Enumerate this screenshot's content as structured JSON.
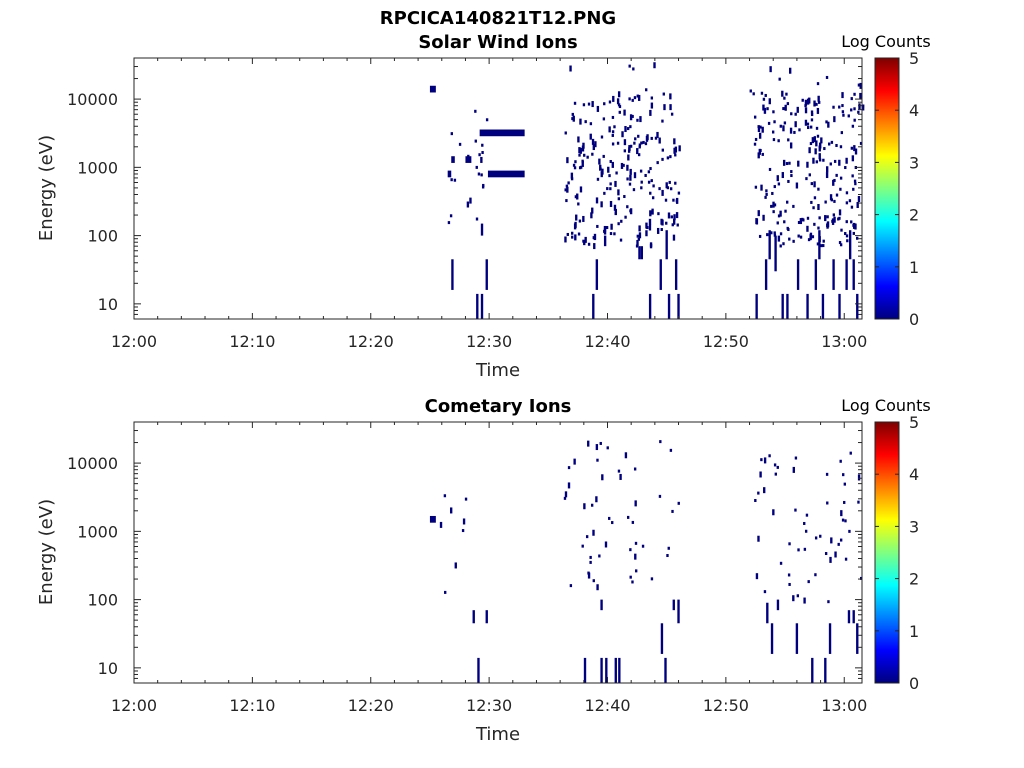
{
  "figure_title": "RPCICA140821T12.PNG",
  "colorbar_label": "Log Counts",
  "colorbar_ticks": [
    "0",
    "1",
    "2",
    "3",
    "4",
    "5"
  ],
  "colormap": [
    "#00007f",
    "#0000ff",
    "#0080ff",
    "#00ffff",
    "#80ff80",
    "#ffff00",
    "#ff8000",
    "#ff0000",
    "#7f0000"
  ],
  "chart_data": [
    {
      "type": "heatmap",
      "title": "Solar Wind Ions",
      "xlabel": "Time",
      "ylabel": "Energy (eV)",
      "x_ticks": [
        "12:00",
        "12:10",
        "12:20",
        "12:30",
        "12:40",
        "12:50",
        "13:00"
      ],
      "y_ticks": [
        "10",
        "100",
        "1000",
        "10000"
      ],
      "y_scale": "log",
      "ylim": [
        6,
        40000
      ],
      "xlim": [
        "12:00",
        "13:01.5"
      ],
      "color_scale": "log counts",
      "clim": [
        0,
        5
      ],
      "grid": false,
      "count_level": 0.3,
      "segments": [
        {
          "t": 29.2,
          "dt": 3.8,
          "e": 3200
        },
        {
          "t": 29.9,
          "dt": 3.1,
          "e": 800
        },
        {
          "t": 25.0,
          "dt": 0.5,
          "e": 14000
        },
        {
          "t": 26.8,
          "dt": 0.3,
          "e": 1300
        },
        {
          "t": 28.0,
          "dt": 0.5,
          "e": 1300
        },
        {
          "t": 26.5,
          "dt": 0.3,
          "e": 800
        }
      ],
      "columns": [
        {
          "t": 26.8,
          "e1": 16,
          "e2": 45
        },
        {
          "t": 28.9,
          "e1": 6,
          "e2": 14
        },
        {
          "t": 29.3,
          "e1": 6,
          "e2": 14
        },
        {
          "t": 29.7,
          "e1": 16,
          "e2": 45
        },
        {
          "t": 29.3,
          "e1": 100,
          "e2": 150
        },
        {
          "t": 38.7,
          "e1": 6,
          "e2": 14
        },
        {
          "t": 39.0,
          "e1": 16,
          "e2": 45
        },
        {
          "t": 43.5,
          "e1": 6,
          "e2": 14
        },
        {
          "t": 44.4,
          "e1": 16,
          "e2": 45
        },
        {
          "t": 45.1,
          "e1": 6,
          "e2": 14
        },
        {
          "t": 45.7,
          "e1": 16,
          "e2": 45
        },
        {
          "t": 45.9,
          "e1": 6,
          "e2": 14
        },
        {
          "t": 42.6,
          "e1": 45,
          "e2": 70
        },
        {
          "t": 42.8,
          "e1": 45,
          "e2": 70
        },
        {
          "t": 44.9,
          "e1": 45,
          "e2": 120
        },
        {
          "t": 39.7,
          "e1": 70,
          "e2": 100
        },
        {
          "t": 52.5,
          "e1": 6,
          "e2": 14
        },
        {
          "t": 53.3,
          "e1": 16,
          "e2": 45
        },
        {
          "t": 53.6,
          "e1": 45,
          "e2": 120
        },
        {
          "t": 54.1,
          "e1": 30,
          "e2": 100
        },
        {
          "t": 54.7,
          "e1": 6,
          "e2": 14
        },
        {
          "t": 55.1,
          "e1": 6,
          "e2": 14
        },
        {
          "t": 56.0,
          "e1": 16,
          "e2": 45
        },
        {
          "t": 56.8,
          "e1": 6,
          "e2": 14
        },
        {
          "t": 57.5,
          "e1": 16,
          "e2": 45
        },
        {
          "t": 58.1,
          "e1": 6,
          "e2": 14
        },
        {
          "t": 59.0,
          "e1": 16,
          "e2": 45
        },
        {
          "t": 59.5,
          "e1": 6,
          "e2": 14
        },
        {
          "t": 60.1,
          "e1": 16,
          "e2": 45
        },
        {
          "t": 60.7,
          "e1": 16,
          "e2": 45
        },
        {
          "t": 61.0,
          "e1": 6,
          "e2": 14
        },
        {
          "t": 57.8,
          "e1": 45,
          "e2": 120
        },
        {
          "t": 60.4,
          "e1": 45,
          "e2": 120
        }
      ],
      "clusters": [
        {
          "t0": 26.5,
          "t1": 29.8,
          "e0": 150,
          "e1": 8000,
          "n": 22,
          "seed": 3
        },
        {
          "t0": 36.3,
          "t1": 46.0,
          "e0": 70,
          "e1": 12000,
          "n": 240,
          "seed": 11
        },
        {
          "t0": 52.2,
          "t1": 61.5,
          "e0": 70,
          "e1": 12000,
          "n": 240,
          "seed": 17
        },
        {
          "t0": 36.3,
          "t1": 61.5,
          "e0": 12000,
          "e1": 35000,
          "n": 14,
          "seed": 5
        }
      ]
    },
    {
      "type": "heatmap",
      "title": "Cometary Ions",
      "xlabel": "Time",
      "ylabel": "Energy (eV)",
      "x_ticks": [
        "12:00",
        "12:10",
        "12:20",
        "12:30",
        "12:40",
        "12:50",
        "13:00"
      ],
      "y_ticks": [
        "10",
        "100",
        "1000",
        "10000"
      ],
      "y_scale": "log",
      "ylim": [
        6,
        40000
      ],
      "xlim": [
        "12:00",
        "13:01.5"
      ],
      "color_scale": "log counts",
      "clim": [
        0,
        5
      ],
      "grid": false,
      "count_level": 0.3,
      "segments": [
        {
          "t": 25.0,
          "dt": 0.5,
          "e": 1500
        }
      ],
      "columns": [
        {
          "t": 29.0,
          "e1": 6,
          "e2": 14
        },
        {
          "t": 28.6,
          "e1": 45,
          "e2": 70
        },
        {
          "t": 29.7,
          "e1": 45,
          "e2": 70
        },
        {
          "t": 38.0,
          "e1": 6,
          "e2": 14
        },
        {
          "t": 39.4,
          "e1": 6,
          "e2": 14
        },
        {
          "t": 39.8,
          "e1": 6,
          "e2": 14
        },
        {
          "t": 40.6,
          "e1": 6,
          "e2": 14
        },
        {
          "t": 40.9,
          "e1": 6,
          "e2": 14
        },
        {
          "t": 39.4,
          "e1": 70,
          "e2": 100
        },
        {
          "t": 44.5,
          "e1": 16,
          "e2": 45
        },
        {
          "t": 44.8,
          "e1": 6,
          "e2": 14
        },
        {
          "t": 45.5,
          "e1": 70,
          "e2": 100
        },
        {
          "t": 45.9,
          "e1": 45,
          "e2": 100
        },
        {
          "t": 53.4,
          "e1": 45,
          "e2": 90
        },
        {
          "t": 53.8,
          "e1": 16,
          "e2": 45
        },
        {
          "t": 54.3,
          "e1": 70,
          "e2": 100
        },
        {
          "t": 55.9,
          "e1": 16,
          "e2": 45
        },
        {
          "t": 57.2,
          "e1": 6,
          "e2": 14
        },
        {
          "t": 58.3,
          "e1": 6,
          "e2": 14
        },
        {
          "t": 58.7,
          "e1": 16,
          "e2": 45
        },
        {
          "t": 60.3,
          "e1": 45,
          "e2": 70
        },
        {
          "t": 60.7,
          "e1": 45,
          "e2": 70
        },
        {
          "t": 61.0,
          "e1": 16,
          "e2": 45
        }
      ],
      "clusters": [
        {
          "t0": 25.8,
          "t1": 30.0,
          "e0": 100,
          "e1": 3500,
          "n": 8,
          "seed": 23
        },
        {
          "t0": 36.3,
          "t1": 46.0,
          "e0": 90,
          "e1": 40000,
          "n": 50,
          "seed": 29
        },
        {
          "t0": 52.2,
          "t1": 61.5,
          "e0": 90,
          "e1": 16000,
          "n": 55,
          "seed": 31
        }
      ]
    }
  ]
}
